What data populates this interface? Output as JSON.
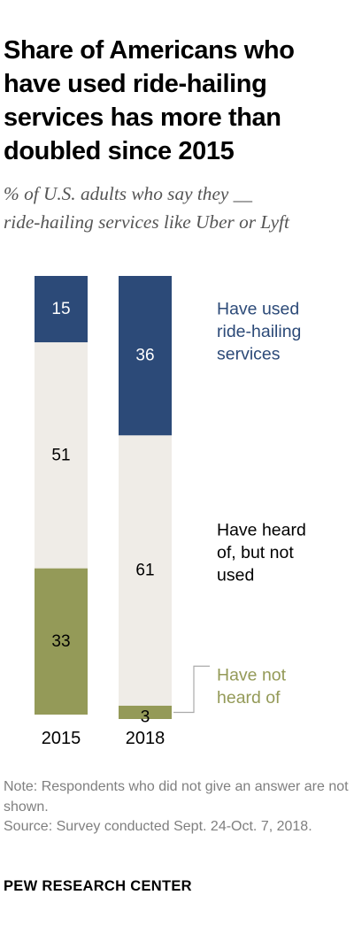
{
  "title": "Share of Americans who have used ride-hailing services has more than doubled since 2015",
  "subtitle_lines": [
    "% of U.S. adults who say they __",
    "ride-hailing services like Uber or Lyft"
  ],
  "chart_data": {
    "type": "bar",
    "stacked": true,
    "categories": [
      "2015",
      "2018"
    ],
    "series": [
      {
        "name": "Have used ride-hailing services",
        "values": [
          15,
          36
        ],
        "color": "#2c4a78",
        "label_color": "#ffffff",
        "legend_color": "#2c4a78",
        "legend_lines": [
          "Have used",
          "ride-hailing",
          "services"
        ]
      },
      {
        "name": "Have heard of, but not used",
        "values": [
          51,
          61
        ],
        "color": "#efece7",
        "label_color": "#000000",
        "legend_color": "#000000",
        "legend_lines": [
          "Have heard",
          "of, but not",
          "used"
        ]
      },
      {
        "name": "Have not heard of",
        "values": [
          33,
          3
        ],
        "color": "#949a58",
        "label_color": "#000000",
        "legend_color": "#949a58",
        "legend_lines": [
          "Have not",
          "heard of"
        ]
      }
    ],
    "ylim": [
      0,
      100
    ],
    "legend_position": "right",
    "grid": false,
    "xlabel": "",
    "ylabel": ""
  },
  "notes": {
    "note": "Note: Respondents who did not give an answer are not shown.",
    "source": "Source: Survey conducted Sept. 24-Oct. 7, 2018."
  },
  "brand": "PEW RESEARCH CENTER"
}
